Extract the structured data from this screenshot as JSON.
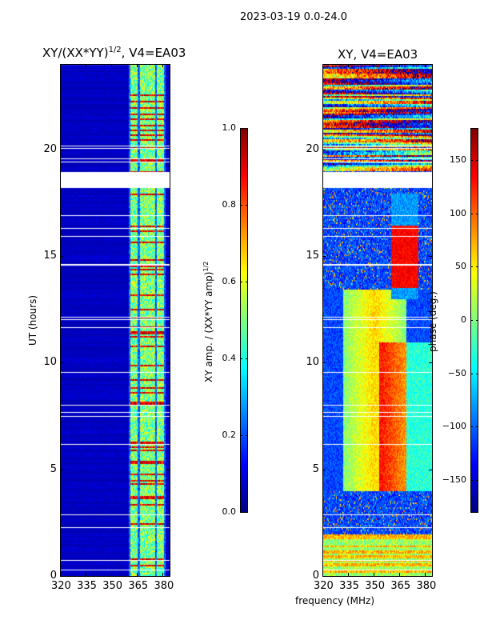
{
  "suptitle": "2023-03-19 0.0-24.0",
  "shared_xlabel": "frequency (MHz)",
  "chart_data": [
    {
      "type": "heatmap",
      "title_main": "XY/(XX*YY)",
      "title_sup": "1/2",
      "title_tail": ", V4=EA03",
      "xlabel": "",
      "ylabel": "UT (hours)",
      "xlim": [
        320,
        384
      ],
      "ylim": [
        0,
        24
      ],
      "xticks": [
        "320",
        "335",
        "350",
        "365",
        "380"
      ],
      "xtick_values": [
        320,
        335,
        350,
        365,
        380
      ],
      "yticks": [
        "0",
        "5",
        "10",
        "15",
        "20"
      ],
      "ytick_values": [
        0,
        5,
        10,
        15,
        20
      ],
      "colormap": "jet",
      "colorbar": {
        "label_main": "XY amp. / (XX*YY amp)",
        "label_sup": "1/2",
        "range": [
          0,
          1
        ],
        "ticks": [
          "0.0",
          "0.2",
          "0.4",
          "0.6",
          "0.8",
          "1.0"
        ],
        "tick_values": [
          0,
          0.2,
          0.4,
          0.6,
          0.8,
          1.0
        ]
      },
      "flagged_gap_hours": [
        18.2,
        18.95
      ]
    },
    {
      "type": "heatmap",
      "title": "XY, V4=EA03",
      "xlim": [
        320,
        384
      ],
      "ylim": [
        0,
        24
      ],
      "xticks": [
        "320",
        "335",
        "350",
        "365",
        "380"
      ],
      "xtick_values": [
        320,
        335,
        350,
        365,
        380
      ],
      "yticks": [
        "0",
        "5",
        "10",
        "15",
        "20"
      ],
      "ytick_values": [
        0,
        5,
        10,
        15,
        20
      ],
      "colormap": "jet",
      "colorbar": {
        "label": "phase (deg.)",
        "range": [
          -180,
          180
        ],
        "ticks": [
          "−150",
          "−100",
          "−50",
          "0",
          "50",
          "100",
          "150"
        ],
        "tick_values": [
          -150,
          -100,
          -50,
          0,
          50,
          100,
          150
        ]
      },
      "flagged_gap_hours": [
        18.2,
        18.95
      ]
    }
  ]
}
